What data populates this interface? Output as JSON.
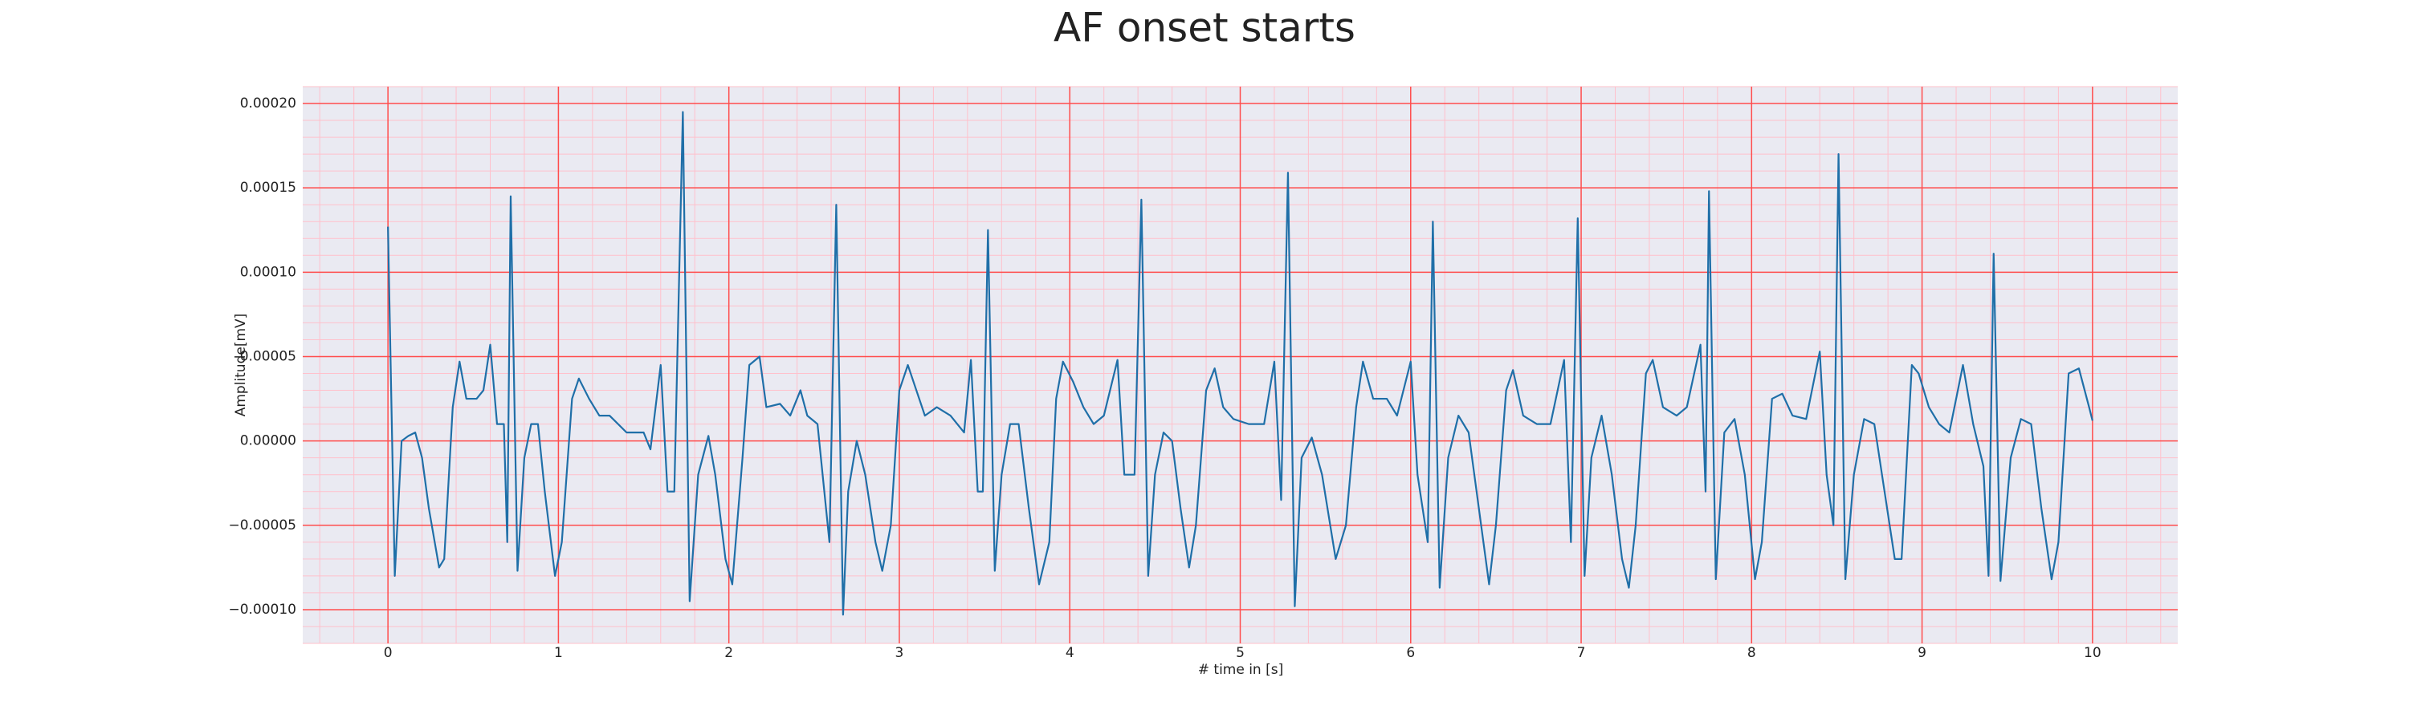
{
  "chart_data": {
    "type": "line",
    "title": "AF onset starts",
    "xlabel": "# time in [s]",
    "ylabel": "Amplitude[mV]",
    "xlim": [
      -0.5,
      10.5
    ],
    "ylim": [
      -0.00012,
      0.00021
    ],
    "xticks": [
      0,
      1,
      2,
      3,
      4,
      5,
      6,
      7,
      8,
      9,
      10
    ],
    "yticks": [
      {
        "value": -0.0001,
        "label": "−0.00010"
      },
      {
        "value": -5e-05,
        "label": "−0.00005"
      },
      {
        "value": 0,
        "label": "0.00000"
      },
      {
        "value": 5e-05,
        "label": "0.00005"
      },
      {
        "value": 0.0001,
        "label": "0.00010"
      },
      {
        "value": 0.00015,
        "label": "0.00015"
      },
      {
        "value": 0.0002,
        "label": "0.00020"
      }
    ],
    "grid": true,
    "minor_grid": true,
    "grid_color": "#ff4d4d",
    "minor_grid_color": "#ffc0cb",
    "background": "#eaeaf2",
    "x": [
      0,
      0.04,
      0.08,
      0.12,
      0.16,
      0.2,
      0.24,
      0.3,
      0.33,
      0.38,
      0.42,
      0.46,
      0.52,
      0.56,
      0.6,
      0.64,
      0.68,
      0.7,
      0.72,
      0.76,
      0.8,
      0.84,
      0.88,
      0.92,
      0.98,
      1.02,
      1.08,
      1.12,
      1.18,
      1.24,
      1.3,
      1.4,
      1.5,
      1.54,
      1.6,
      1.64,
      1.68,
      1.73,
      1.77,
      1.82,
      1.88,
      1.92,
      1.98,
      2.02,
      2.08,
      2.12,
      2.18,
      2.22,
      2.3,
      2.36,
      2.42,
      2.46,
      2.52,
      2.59,
      2.63,
      2.67,
      2.7,
      2.75,
      2.8,
      2.86,
      2.9,
      2.95,
      3.0,
      3.05,
      3.1,
      3.15,
      3.22,
      3.3,
      3.38,
      3.42,
      3.46,
      3.49,
      3.52,
      3.56,
      3.6,
      3.65,
      3.7,
      3.76,
      3.82,
      3.88,
      3.92,
      3.96,
      4.02,
      4.08,
      4.14,
      4.2,
      4.28,
      4.32,
      4.38,
      4.42,
      4.46,
      4.5,
      4.55,
      4.6,
      4.65,
      4.7,
      4.74,
      4.8,
      4.85,
      4.9,
      4.96,
      5.05,
      5.14,
      5.2,
      5.24,
      5.28,
      5.32,
      5.36,
      5.42,
      5.48,
      5.56,
      5.62,
      5.68,
      5.72,
      5.78,
      5.86,
      5.92,
      6.0,
      6.04,
      6.1,
      6.13,
      6.17,
      6.22,
      6.28,
      6.34,
      6.4,
      6.46,
      6.5,
      6.56,
      6.6,
      6.66,
      6.74,
      6.82,
      6.9,
      6.94,
      6.98,
      7.02,
      7.06,
      7.12,
      7.18,
      7.24,
      7.28,
      7.32,
      7.38,
      7.42,
      7.48,
      7.56,
      7.62,
      7.7,
      7.73,
      7.75,
      7.79,
      7.84,
      7.9,
      7.96,
      8.02,
      8.06,
      8.12,
      8.18,
      8.24,
      8.32,
      8.4,
      8.44,
      8.48,
      8.51,
      8.55,
      8.6,
      8.66,
      8.72,
      8.78,
      8.84,
      8.88,
      8.94,
      8.98,
      9.04,
      9.1,
      9.16,
      9.24,
      9.3,
      9.36,
      9.39,
      9.42,
      9.46,
      9.52,
      9.58,
      9.64,
      9.7,
      9.76,
      9.8,
      9.86,
      9.92,
      9.98,
      10.0
    ],
    "series": [
      {
        "color": "#1f6fa8",
        "values": [
          0.000127,
          -8e-05,
          0,
          3e-06,
          5e-06,
          -1e-05,
          -4e-05,
          -7.5e-05,
          -7e-05,
          2e-05,
          4.7e-05,
          2.5e-05,
          2.5e-05,
          3e-05,
          5.7e-05,
          1e-05,
          1e-05,
          -6e-05,
          0.000145,
          -7.7e-05,
          -1e-05,
          1e-05,
          1e-05,
          -3e-05,
          -8e-05,
          -6e-05,
          2.5e-05,
          3.7e-05,
          2.5e-05,
          1.5e-05,
          1.5e-05,
          5e-06,
          5e-06,
          -5e-06,
          4.5e-05,
          -3e-05,
          -3e-05,
          0.000195,
          -9.5e-05,
          -2e-05,
          3e-06,
          -2e-05,
          -7e-05,
          -8.5e-05,
          -1e-05,
          4.5e-05,
          5e-05,
          2e-05,
          2.2e-05,
          1.5e-05,
          3e-05,
          1.5e-05,
          1e-05,
          -6e-05,
          0.00014,
          -0.000103,
          -3e-05,
          0,
          -2e-05,
          -6e-05,
          -7.7e-05,
          -5e-05,
          3e-05,
          4.5e-05,
          3e-05,
          1.5e-05,
          2e-05,
          1.5e-05,
          5e-06,
          4.8e-05,
          -3e-05,
          -3e-05,
          0.000125,
          -7.7e-05,
          -2e-05,
          1e-05,
          1e-05,
          -4e-05,
          -8.5e-05,
          -6e-05,
          2.5e-05,
          4.7e-05,
          3.5e-05,
          2e-05,
          1e-05,
          1.5e-05,
          4.8e-05,
          -2e-05,
          -2e-05,
          0.000143,
          -8e-05,
          -2e-05,
          5e-06,
          0,
          -4e-05,
          -7.5e-05,
          -5e-05,
          3e-05,
          4.3e-05,
          2e-05,
          1.3e-05,
          1e-05,
          1e-05,
          4.7e-05,
          -3.5e-05,
          0.000159,
          -9.8e-05,
          -1e-05,
          2e-06,
          -2e-05,
          -7e-05,
          -5e-05,
          2e-05,
          4.7e-05,
          2.5e-05,
          2.5e-05,
          1.5e-05,
          4.7e-05,
          -2e-05,
          -6e-05,
          0.00013,
          -8.7e-05,
          -1e-05,
          1.5e-05,
          5e-06,
          -4e-05,
          -8.5e-05,
          -5e-05,
          3e-05,
          4.2e-05,
          1.5e-05,
          1e-05,
          1e-05,
          4.8e-05,
          -6e-05,
          0.000132,
          -8e-05,
          -1e-05,
          1.5e-05,
          -2e-05,
          -7e-05,
          -8.7e-05,
          -5e-05,
          4e-05,
          4.8e-05,
          2e-05,
          1.5e-05,
          2e-05,
          5.7e-05,
          -3e-05,
          0.000148,
          -8.2e-05,
          5e-06,
          1.3e-05,
          -2e-05,
          -8.2e-05,
          -6e-05,
          2.5e-05,
          2.8e-05,
          1.5e-05,
          1.3e-05,
          5.3e-05,
          -2e-05,
          -5e-05,
          0.00017,
          -8.2e-05,
          -2e-05,
          1.3e-05,
          1e-05,
          -3e-05,
          -7e-05,
          -7e-05,
          4.5e-05,
          4e-05,
          2e-05,
          1e-05,
          5e-06,
          4.5e-05,
          1e-05,
          -1.5e-05,
          -8e-05,
          0.000111,
          -8.3e-05,
          -1e-05,
          1.3e-05,
          1e-05,
          -4e-05,
          -8.2e-05,
          -6e-05,
          4e-05,
          4.3e-05,
          2e-05,
          1.2e-05
        ]
      }
    ]
  }
}
